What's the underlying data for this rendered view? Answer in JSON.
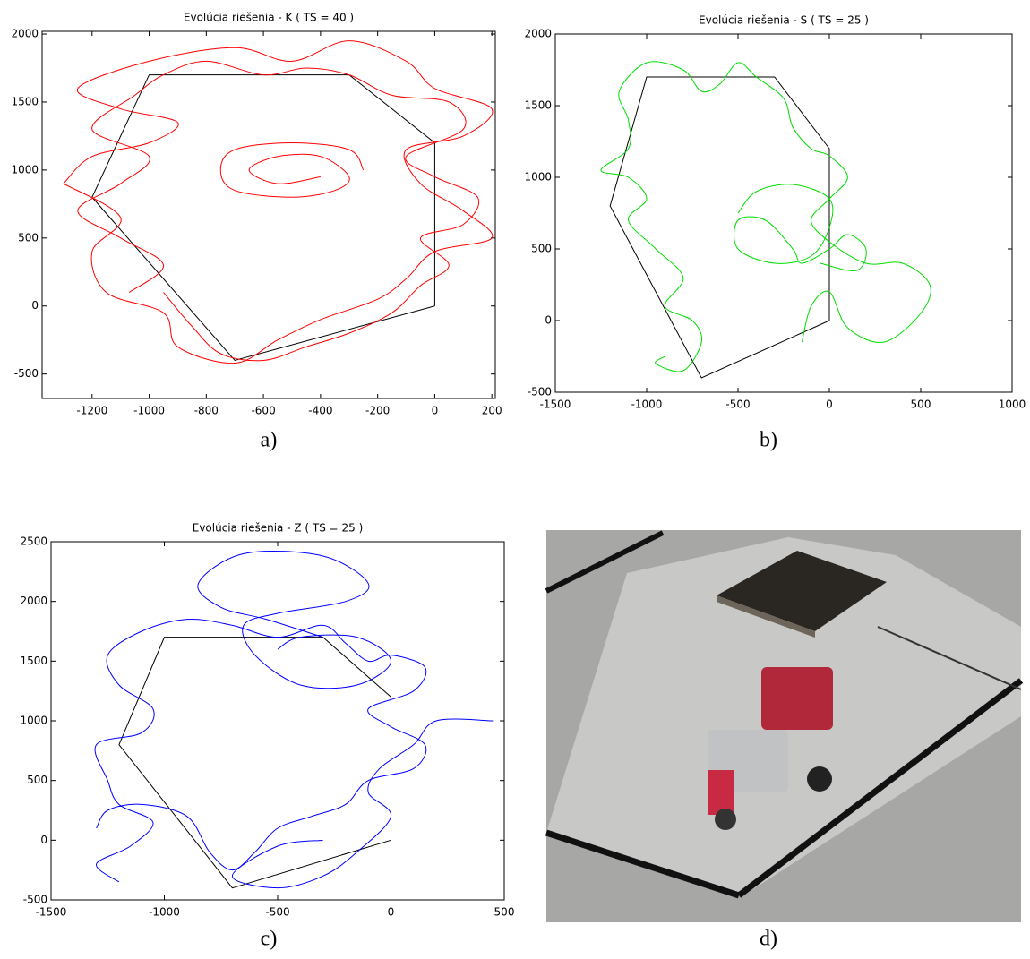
{
  "chart_data": [
    {
      "type": "line",
      "title": "Evolúcia riešenia - K ( TS = 40 )",
      "xlim": [
        -1375,
        212
      ],
      "ylim": [
        -680,
        2020
      ],
      "xticks": [
        -1200,
        -1000,
        -800,
        -600,
        -400,
        -200,
        0,
        200
      ],
      "yticks": [
        -500,
        0,
        500,
        1000,
        1500,
        2000
      ],
      "series": [
        {
          "color": "#000000",
          "smooth": false,
          "x": [
            0,
            0,
            -300,
            -1000,
            -1200,
            -700,
            0
          ],
          "values": [
            0,
            1200,
            1700,
            1700,
            800,
            -400,
            0
          ]
        },
        {
          "color": "#ff0000",
          "smooth": true,
          "x": [
            -1070,
            -950,
            -1100,
            -1250,
            -1100,
            -1000,
            -1200,
            -1050,
            -950,
            -800,
            -600,
            -450,
            -300,
            -150,
            50,
            100,
            -100,
            0,
            150,
            100,
            -50,
            50,
            -50,
            -150,
            -300,
            -450,
            -600,
            -750,
            -850,
            -950
          ],
          "values": [
            100,
            300,
            500,
            700,
            900,
            1100,
            1300,
            1550,
            1700,
            1800,
            1700,
            1750,
            1700,
            1550,
            1500,
            1300,
            1100,
            950,
            800,
            600,
            500,
            300,
            150,
            -50,
            -200,
            -300,
            -400,
            -350,
            -150,
            100
          ]
        },
        {
          "color": "#ff0000",
          "smooth": true,
          "x": [
            -1300,
            -1200,
            -1000,
            -900,
            -1100,
            -1250,
            -1000,
            -700,
            -500,
            -300,
            -100,
            0,
            200,
            100,
            -100,
            -50,
            100,
            200,
            0,
            -100,
            -200,
            -400,
            -550,
            -700,
            -900,
            -950,
            -1150,
            -1200,
            -1100,
            -1300
          ],
          "values": [
            900,
            1100,
            1200,
            1350,
            1450,
            1600,
            1800,
            1900,
            1800,
            1950,
            1800,
            1600,
            1450,
            1250,
            1150,
            900,
            700,
            500,
            400,
            200,
            50,
            -100,
            -250,
            -420,
            -300,
            -50,
            100,
            400,
            650,
            900
          ]
        },
        {
          "color": "#ff0000",
          "smooth": true,
          "x": [
            -250,
            -300,
            -500,
            -700,
            -750,
            -700,
            -500,
            -350,
            -300,
            -400,
            -550,
            -650,
            -550,
            -400
          ],
          "values": [
            1000,
            1150,
            1200,
            1150,
            1000,
            850,
            800,
            850,
            950,
            1100,
            1100,
            1000,
            900,
            950
          ]
        }
      ]
    },
    {
      "type": "line",
      "title": "Evolúcia riešenia - S ( TS = 25 )",
      "xlim": [
        -1500,
        1000
      ],
      "ylim": [
        -500,
        2000
      ],
      "xticks": [
        -1500,
        -1000,
        -500,
        0,
        500,
        1000
      ],
      "yticks": [
        -500,
        0,
        500,
        1000,
        1500,
        2000
      ],
      "series": [
        {
          "color": "#000000",
          "smooth": false,
          "x": [
            0,
            0,
            -300,
            -1000,
            -1200,
            -700,
            0
          ],
          "values": [
            0,
            1200,
            1700,
            1700,
            800,
            -400,
            0
          ]
        },
        {
          "color": "#00dd00",
          "smooth": true,
          "x": [
            -900,
            -950,
            -800,
            -700,
            -750,
            -900,
            -800,
            -950,
            -1100,
            -1000,
            -1100,
            -1250,
            -1100,
            -1100,
            -1150,
            -1000,
            -800,
            -700,
            -600,
            -500,
            -400,
            -250,
            -200,
            -100,
            0,
            100,
            0,
            -100,
            0,
            200,
            400,
            550,
            500,
            300,
            100,
            0,
            -100,
            -150
          ],
          "values": [
            -250,
            -300,
            -350,
            -150,
            0,
            100,
            300,
            500,
            700,
            850,
            1000,
            1050,
            1200,
            1400,
            1600,
            1800,
            1750,
            1600,
            1650,
            1800,
            1700,
            1550,
            1350,
            1200,
            1150,
            1000,
            850,
            700,
            550,
            400,
            400,
            250,
            50,
            -150,
            -50,
            200,
            100,
            -150
          ]
        },
        {
          "color": "#00dd00",
          "smooth": true,
          "x": [
            -500,
            -400,
            -200,
            0,
            0,
            -100,
            -300,
            -500,
            -500,
            -350,
            -200,
            -150,
            0,
            100,
            200,
            150,
            -50
          ],
          "values": [
            750,
            900,
            950,
            850,
            650,
            450,
            400,
            500,
            700,
            700,
            500,
            400,
            500,
            600,
            500,
            350,
            400
          ]
        }
      ]
    },
    {
      "type": "line",
      "title": "Evolúcia riešenia - Z ( TS = 25 )",
      "xlim": [
        -1500,
        500
      ],
      "ylim": [
        -500,
        2500
      ],
      "xticks": [
        -1500,
        -1000,
        -500,
        0,
        500
      ],
      "yticks": [
        -500,
        0,
        500,
        1000,
        1500,
        2000,
        2500
      ],
      "series": [
        {
          "color": "#000000",
          "smooth": false,
          "x": [
            0,
            0,
            -300,
            -1000,
            -1200,
            -700,
            0
          ],
          "values": [
            0,
            1200,
            1700,
            1700,
            800,
            -400,
            0
          ]
        },
        {
          "color": "#0000ff",
          "smooth": true,
          "x": [
            -1200,
            -1300,
            -1150,
            -1050,
            -1200,
            -1250,
            -1300,
            -1100,
            -1050,
            -1200,
            -1250,
            -1100,
            -900,
            -700,
            -500,
            -300,
            -200,
            -100,
            0,
            150,
            100,
            -100,
            0,
            150,
            100,
            -100,
            -200,
            -350,
            -500,
            -600,
            -700,
            -800,
            -900,
            -1100,
            -1250,
            -1300
          ],
          "values": [
            -350,
            -200,
            -50,
            150,
            300,
            500,
            800,
            900,
            1100,
            1300,
            1550,
            1750,
            1850,
            1800,
            1700,
            1800,
            1650,
            1500,
            1550,
            1450,
            1250,
            1100,
            950,
            800,
            600,
            500,
            300,
            200,
            100,
            -100,
            -250,
            -100,
            200,
            300,
            250,
            100
          ]
        },
        {
          "color": "#0000ff",
          "smooth": true,
          "x": [
            -300,
            -550,
            -750,
            -850,
            -650,
            -300,
            -100,
            -200,
            -500,
            -650,
            -600,
            -400,
            -150,
            0,
            -150,
            -400,
            -500
          ],
          "values": [
            1700,
            1850,
            1950,
            2150,
            2400,
            2380,
            2150,
            2000,
            1900,
            1800,
            1550,
            1300,
            1300,
            1500,
            1700,
            1700,
            1600
          ]
        },
        {
          "color": "#0000ff",
          "smooth": true,
          "x": [
            -300,
            -500,
            -700,
            -500,
            -300,
            -150,
            0,
            -100,
            -50,
            100,
            200,
            450
          ],
          "values": [
            0,
            -50,
            -300,
            -400,
            -300,
            -100,
            200,
            400,
            600,
            800,
            1000,
            1000
          ]
        }
      ]
    }
  ],
  "captions": [
    "a)",
    "b)",
    "c)",
    "d)"
  ]
}
